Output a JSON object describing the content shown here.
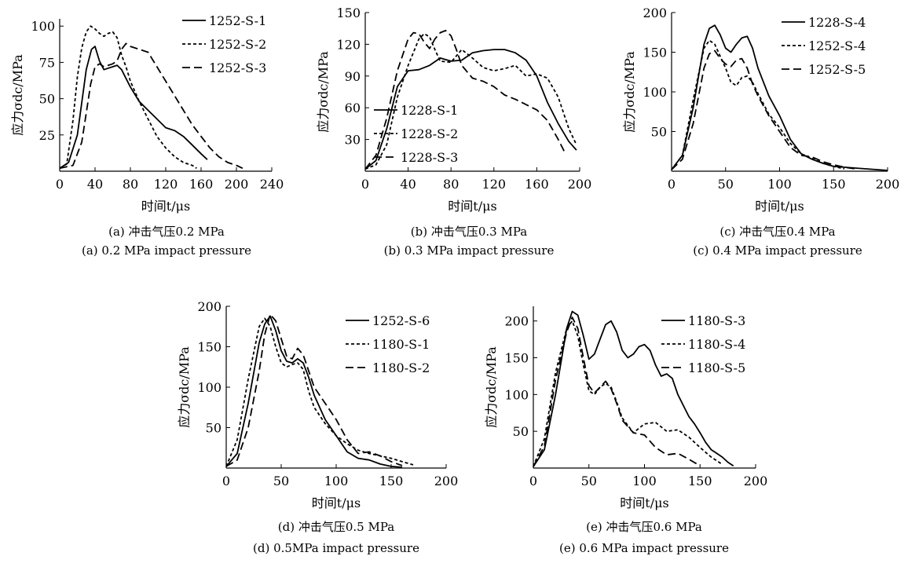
{
  "chart_data": [
    {
      "type": "line",
      "xlabel": "时间t/μs",
      "ylabel": "应力σdc/MPa",
      "xlim": [
        0,
        240
      ],
      "ylim": [
        0,
        105
      ],
      "xticks": [
        0,
        40,
        80,
        120,
        160,
        200,
        240
      ],
      "yticks": [
        25,
        50,
        75,
        100
      ],
      "caption_cn": "(a) 冲击气压0.2 MPa",
      "caption_en": "(a) 0.2 MPa impact pressure",
      "legend_position": "top-right",
      "series": [
        {
          "name": "1252-S-1",
          "style": "solid",
          "x": [
            0,
            10,
            20,
            30,
            36,
            40,
            45,
            50,
            55,
            60,
            65,
            70,
            75,
            80,
            90,
            100,
            110,
            120,
            130,
            140,
            150,
            160,
            167
          ],
          "y": [
            2,
            6,
            25,
            70,
            84,
            86,
            76,
            70,
            71,
            72,
            73,
            70,
            64,
            58,
            48,
            42,
            36,
            30,
            28,
            24,
            18,
            12,
            8
          ]
        },
        {
          "name": "1252-S-2",
          "style": "dotted",
          "x": [
            0,
            8,
            15,
            20,
            25,
            30,
            35,
            40,
            45,
            50,
            55,
            60,
            65,
            70,
            75,
            80,
            90,
            100,
            110,
            120,
            130,
            140,
            150,
            155
          ],
          "y": [
            2,
            5,
            35,
            65,
            85,
            96,
            100,
            98,
            95,
            93,
            95,
            96,
            92,
            80,
            72,
            62,
            48,
            36,
            24,
            16,
            10,
            6,
            4,
            2
          ]
        },
        {
          "name": "1252-S-3",
          "style": "dashed",
          "x": [
            0,
            15,
            25,
            30,
            35,
            40,
            45,
            50,
            55,
            60,
            65,
            70,
            75,
            80,
            90,
            100,
            110,
            120,
            130,
            140,
            150,
            160,
            170,
            180,
            190,
            200,
            207
          ],
          "y": [
            2,
            4,
            20,
            40,
            60,
            72,
            74,
            72,
            73,
            74,
            76,
            84,
            88,
            86,
            84,
            82,
            72,
            62,
            52,
            42,
            32,
            24,
            16,
            10,
            6,
            4,
            2
          ]
        }
      ]
    },
    {
      "type": "line",
      "xlabel": "时间t/μs",
      "ylabel": "应力σdc/MPa",
      "xlim": [
        0,
        200
      ],
      "ylim": [
        0,
        150
      ],
      "xticks": [
        0,
        40,
        80,
        120,
        160,
        200
      ],
      "yticks": [
        30,
        60,
        90,
        120,
        150
      ],
      "caption_cn": "(b) 冲击气压0.3 MPa",
      "caption_en": "(b) 0.3 MPa impact pressure",
      "legend_position": "bottom-left",
      "series": [
        {
          "name": "1228-S-1",
          "style": "solid",
          "x": [
            0,
            10,
            20,
            30,
            40,
            50,
            60,
            70,
            80,
            90,
            100,
            110,
            120,
            130,
            140,
            150,
            160,
            170,
            180,
            190,
            197
          ],
          "y": [
            2,
            10,
            40,
            80,
            95,
            96,
            100,
            107,
            104,
            105,
            112,
            114,
            115,
            115,
            112,
            105,
            90,
            65,
            45,
            28,
            20
          ]
        },
        {
          "name": "1228-S-2",
          "style": "dotted",
          "x": [
            0,
            10,
            20,
            30,
            40,
            50,
            55,
            60,
            65,
            70,
            80,
            90,
            100,
            110,
            120,
            130,
            140,
            150,
            160,
            170,
            180,
            190,
            197
          ],
          "y": [
            2,
            6,
            25,
            70,
            100,
            125,
            130,
            127,
            115,
            104,
            103,
            115,
            107,
            98,
            95,
            97,
            100,
            90,
            92,
            88,
            70,
            40,
            25
          ]
        },
        {
          "name": "1228-S-3",
          "style": "dashed",
          "x": [
            0,
            10,
            20,
            30,
            40,
            45,
            50,
            55,
            60,
            65,
            70,
            75,
            80,
            85,
            90,
            100,
            110,
            120,
            130,
            140,
            150,
            160,
            170,
            180,
            186
          ],
          "y": [
            2,
            15,
            50,
            95,
            125,
            131,
            130,
            122,
            116,
            125,
            131,
            133,
            128,
            115,
            100,
            88,
            85,
            80,
            72,
            68,
            63,
            58,
            48,
            30,
            18
          ]
        }
      ]
    },
    {
      "type": "line",
      "xlabel": "时间t/μs",
      "ylabel": "应力σdc/MPa",
      "xlim": [
        0,
        200
      ],
      "ylim": [
        0,
        200
      ],
      "xticks": [
        0,
        50,
        100,
        150,
        200
      ],
      "yticks": [
        50,
        100,
        150,
        200
      ],
      "caption_cn": "(c) 冲击气压0.4 MPa",
      "caption_en": "(c) 0.4 MPa impact pressure",
      "legend_position": "top-right",
      "series": [
        {
          "name": "1228-S-4",
          "style": "solid",
          "x": [
            0,
            10,
            20,
            30,
            35,
            40,
            45,
            50,
            55,
            60,
            65,
            70,
            75,
            80,
            90,
            100,
            110,
            120,
            130,
            140,
            150,
            170,
            190,
            200
          ],
          "y": [
            2,
            20,
            80,
            160,
            180,
            184,
            172,
            155,
            150,
            160,
            168,
            170,
            155,
            130,
            95,
            70,
            40,
            22,
            15,
            10,
            6,
            4,
            2,
            1
          ]
        },
        {
          "name": "1252-S-4",
          "style": "dotted",
          "x": [
            0,
            10,
            20,
            30,
            35,
            40,
            45,
            50,
            55,
            60,
            65,
            70,
            75,
            80,
            90,
            100,
            110,
            120,
            130,
            140,
            150,
            160
          ],
          "y": [
            2,
            20,
            90,
            155,
            165,
            160,
            145,
            130,
            112,
            108,
            118,
            120,
            112,
            98,
            72,
            55,
            35,
            22,
            16,
            10,
            6,
            3
          ]
        },
        {
          "name": "1252-S-5",
          "style": "dashed",
          "x": [
            0,
            10,
            20,
            30,
            35,
            40,
            45,
            50,
            55,
            60,
            65,
            70,
            75,
            80,
            90,
            100,
            110,
            120,
            130,
            140,
            150,
            160,
            170
          ],
          "y": [
            2,
            15,
            60,
            130,
            148,
            152,
            142,
            135,
            132,
            140,
            142,
            130,
            110,
            95,
            70,
            50,
            30,
            20,
            18,
            12,
            8,
            5,
            3
          ]
        }
      ]
    },
    {
      "type": "line",
      "xlabel": "时间t/μs",
      "ylabel": "应力σdc/MPa",
      "xlim": [
        0,
        200
      ],
      "ylim": [
        0,
        200
      ],
      "xticks": [
        0,
        50,
        100,
        150,
        200
      ],
      "yticks": [
        50,
        100,
        150,
        200
      ],
      "caption_cn": "(d) 冲击气压0.5 MPa",
      "caption_en": "(d) 0.5MPa impact pressure",
      "legend_position": "top-right",
      "series": [
        {
          "name": "1252-S-6",
          "style": "solid",
          "x": [
            0,
            10,
            20,
            30,
            35,
            40,
            45,
            50,
            55,
            60,
            65,
            70,
            75,
            80,
            90,
            100,
            110,
            120,
            130,
            140,
            150,
            160
          ],
          "y": [
            2,
            18,
            80,
            155,
            178,
            188,
            170,
            145,
            132,
            130,
            135,
            130,
            112,
            90,
            60,
            40,
            20,
            12,
            10,
            5,
            2,
            1
          ]
        },
        {
          "name": "1180-S-1",
          "style": "dotted",
          "x": [
            0,
            10,
            20,
            30,
            35,
            40,
            45,
            50,
            55,
            60,
            65,
            70,
            75,
            80,
            90,
            100,
            110,
            120,
            130,
            140,
            150,
            160,
            170
          ],
          "y": [
            2,
            35,
            110,
            175,
            185,
            175,
            150,
            130,
            125,
            128,
            130,
            122,
            95,
            75,
            55,
            40,
            30,
            22,
            18,
            15,
            12,
            8,
            4
          ]
        },
        {
          "name": "1180-S-2",
          "style": "dashed",
          "x": [
            0,
            10,
            20,
            30,
            35,
            40,
            45,
            50,
            55,
            60,
            65,
            70,
            75,
            80,
            90,
            100,
            110,
            120,
            130,
            140,
            150,
            160
          ],
          "y": [
            2,
            10,
            50,
            120,
            165,
            190,
            182,
            160,
            138,
            135,
            148,
            140,
            120,
            100,
            80,
            60,
            35,
            18,
            20,
            15,
            8,
            3
          ]
        }
      ]
    },
    {
      "type": "line",
      "xlabel": "时间t/μs",
      "ylabel": "应力σdc/MPa",
      "xlim": [
        0,
        200
      ],
      "ylim": [
        0,
        220
      ],
      "xticks": [
        0,
        50,
        100,
        150,
        200
      ],
      "yticks": [
        50,
        100,
        150,
        200
      ],
      "caption_cn": "(e) 冲击气压0.6 MPa",
      "caption_en": "(e) 0.6 MPa impact pressure",
      "legend_position": "top-right",
      "series": [
        {
          "name": "1180-S-3",
          "style": "solid",
          "x": [
            0,
            10,
            20,
            30,
            35,
            40,
            45,
            50,
            55,
            60,
            65,
            70,
            75,
            80,
            85,
            90,
            95,
            100,
            105,
            110,
            115,
            120,
            125,
            130,
            135,
            140,
            145,
            150,
            155,
            160,
            165,
            170,
            175,
            180
          ],
          "y": [
            2,
            25,
            100,
            190,
            213,
            208,
            180,
            148,
            155,
            175,
            195,
            200,
            185,
            160,
            150,
            155,
            165,
            168,
            160,
            140,
            125,
            128,
            122,
            100,
            85,
            70,
            60,
            48,
            35,
            25,
            20,
            15,
            8,
            3
          ]
        },
        {
          "name": "1180-S-4",
          "style": "dotted",
          "x": [
            0,
            10,
            20,
            30,
            35,
            40,
            45,
            50,
            55,
            60,
            65,
            70,
            75,
            80,
            90,
            100,
            110,
            120,
            130,
            140,
            150,
            160,
            170
          ],
          "y": [
            2,
            40,
            130,
            190,
            200,
            180,
            140,
            105,
            100,
            110,
            115,
            110,
            90,
            68,
            48,
            60,
            62,
            50,
            52,
            42,
            28,
            15,
            5
          ]
        },
        {
          "name": "1180-S-5",
          "style": "dashed",
          "x": [
            0,
            10,
            20,
            30,
            35,
            40,
            45,
            50,
            55,
            60,
            65,
            70,
            75,
            80,
            90,
            100,
            110,
            120,
            130,
            140,
            150
          ],
          "y": [
            2,
            30,
            120,
            185,
            205,
            190,
            150,
            112,
            102,
            110,
            118,
            108,
            88,
            65,
            48,
            45,
            28,
            18,
            20,
            12,
            3
          ]
        }
      ]
    }
  ]
}
